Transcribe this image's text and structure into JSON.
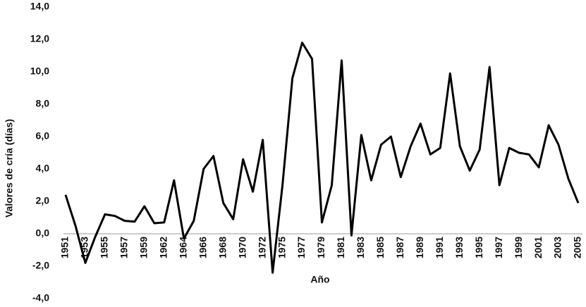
{
  "chart_data": {
    "type": "line",
    "x_label": "Año",
    "y_label": "Valores de cría (días)",
    "categories": [
      "1951",
      null,
      "1953",
      null,
      "1955",
      null,
      "1957",
      null,
      "1959",
      null,
      "1962",
      null,
      "1964",
      null,
      "1966",
      null,
      "1968",
      null,
      "1970",
      null,
      "1972",
      null,
      "1975",
      null,
      "1977",
      null,
      "1979",
      null,
      "1981",
      null,
      "1983",
      null,
      "1985",
      null,
      "1987",
      null,
      "1989",
      null,
      "1991",
      null,
      "1993",
      null,
      "1995",
      null,
      "1997",
      null,
      "1999",
      null,
      "2001",
      null,
      "2003",
      null,
      "2005"
    ],
    "series": [
      {
        "color": "#000000",
        "values": [
          2.4,
          0.5,
          -1.8,
          -0.2,
          1.2,
          1.1,
          0.8,
          0.75,
          1.7,
          0.65,
          0.7,
          3.3,
          -0.3,
          0.8,
          4.0,
          4.8,
          1.9,
          0.9,
          4.6,
          2.6,
          5.8,
          -2.4,
          3.0,
          9.6,
          11.8,
          10.8,
          0.7,
          3.0,
          10.7,
          -0.1,
          6.1,
          3.3,
          5.5,
          6.0,
          3.5,
          5.4,
          6.8,
          4.9,
          5.3,
          9.9,
          5.4,
          3.9,
          5.2,
          10.3,
          3.0,
          5.3,
          5.0,
          4.9,
          4.1,
          6.7,
          5.5,
          3.4,
          1.9
        ]
      }
    ],
    "ylim": [
      -4,
      14
    ],
    "yticks": [
      {
        "value": -4,
        "label": "-4,0"
      },
      {
        "value": -2,
        "label": "-2,0"
      },
      {
        "value": 0,
        "label": "0,0"
      },
      {
        "value": 2,
        "label": "2,0"
      },
      {
        "value": 4,
        "label": "4,0"
      },
      {
        "value": 6,
        "label": "6,0"
      },
      {
        "value": 8,
        "label": "8,0"
      },
      {
        "value": 10,
        "label": "10,0"
      },
      {
        "value": 12,
        "label": "12,0"
      },
      {
        "value": 14,
        "label": "14,0"
      }
    ],
    "grid": false
  }
}
